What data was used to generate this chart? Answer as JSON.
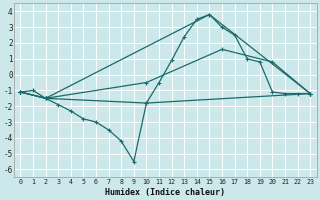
{
  "xlabel": "Humidex (Indice chaleur)",
  "bg_color": "#cce8ea",
  "grid_color": "#ffffff",
  "line_color": "#1a6b6b",
  "xlim": [
    -0.5,
    23.5
  ],
  "ylim": [
    -6.5,
    4.5
  ],
  "xticks": [
    0,
    1,
    2,
    3,
    4,
    5,
    6,
    7,
    8,
    9,
    10,
    11,
    12,
    13,
    14,
    15,
    16,
    17,
    18,
    19,
    20,
    21,
    22,
    23
  ],
  "yticks": [
    -6,
    -5,
    -4,
    -3,
    -2,
    -1,
    0,
    1,
    2,
    3,
    4
  ],
  "lines": [
    {
      "x": [
        0,
        1,
        2,
        3,
        4,
        5,
        6,
        7,
        8,
        9,
        10,
        11,
        12,
        13,
        14,
        15,
        16,
        17,
        18,
        19,
        20,
        21,
        22,
        23
      ],
      "y": [
        -1.1,
        -1.0,
        -1.5,
        -1.9,
        -2.3,
        -2.8,
        -3.0,
        -3.5,
        -4.2,
        -5.5,
        -1.8,
        -0.5,
        0.9,
        2.4,
        3.5,
        3.8,
        3.0,
        2.5,
        1.0,
        0.8,
        -1.1,
        -1.2,
        -1.2,
        -1.2
      ]
    },
    {
      "x": [
        0,
        2,
        10,
        23
      ],
      "y": [
        -1.1,
        -1.5,
        -1.8,
        -1.2
      ],
      "markers": true
    },
    {
      "x": [
        0,
        2,
        10,
        16,
        20,
        23
      ],
      "y": [
        -1.1,
        -1.5,
        -0.5,
        1.6,
        0.8,
        -1.2
      ],
      "markers": true
    },
    {
      "x": [
        0,
        2,
        15,
        23
      ],
      "y": [
        -1.1,
        -1.5,
        3.8,
        -1.2
      ],
      "markers": false
    }
  ]
}
